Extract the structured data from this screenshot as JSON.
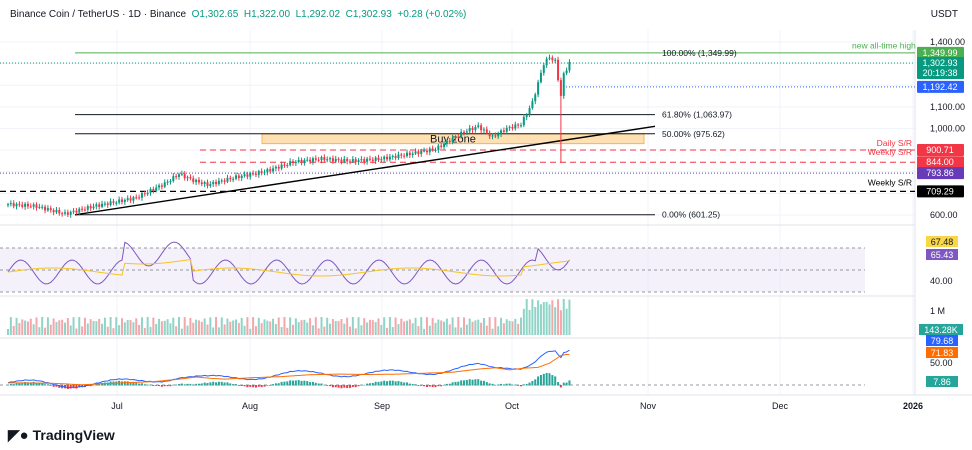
{
  "header": {
    "symbol": "Binance Coin / TetherUS · 1D · Binance",
    "open": "O1,302.65",
    "high": "H1,322.00",
    "low": "L1,292.02",
    "close": "C1,302.93",
    "change": "+0.28 (+0.02%)",
    "currency": "USDT"
  },
  "brand": {
    "name": "TradingView"
  },
  "chart_data": {
    "type": "candlestick",
    "title": "Binance Coin / TetherUS 1D",
    "ylim": [
      560,
      1450
    ],
    "y_ticks": [
      "1,400.00",
      "1,100.00",
      "1,000.00",
      "600.00"
    ],
    "x_ticks": [
      "Jul",
      "Aug",
      "Sep",
      "Oct",
      "Nov",
      "Dec",
      "2026"
    ],
    "close_waypoints_by_day": [
      [
        0,
        650
      ],
      [
        10,
        640
      ],
      [
        20,
        605
      ],
      [
        30,
        640
      ],
      [
        45,
        680
      ],
      [
        55,
        745
      ],
      [
        60,
        790
      ],
      [
        65,
        760
      ],
      [
        70,
        740
      ],
      [
        80,
        775
      ],
      [
        90,
        800
      ],
      [
        100,
        845
      ],
      [
        110,
        860
      ],
      [
        120,
        850
      ],
      [
        130,
        858
      ],
      [
        140,
        880
      ],
      [
        150,
        905
      ],
      [
        160,
        985
      ],
      [
        165,
        1010
      ],
      [
        170,
        960
      ],
      [
        175,
        1000
      ],
      [
        180,
        1020
      ],
      [
        184,
        1120
      ],
      [
        188,
        1300
      ],
      [
        190,
        1330
      ],
      [
        192,
        1310
      ],
      [
        194,
        1150
      ],
      [
        195,
        1250
      ],
      [
        197,
        1302.93
      ]
    ],
    "fib_levels": [
      {
        "label": "100.00% (1,349.99)",
        "value": 1349.99
      },
      {
        "label": "61.80% (1,063.97)",
        "value": 1063.97
      },
      {
        "label": "50.00% (975.62)",
        "value": 975.62
      },
      {
        "label": "0.00% (601.25)",
        "value": 601.25
      }
    ],
    "annotations": {
      "ath": "new all-time high",
      "buy_zone": "Buy zone",
      "daily_sr": "Daily S/R",
      "weekly_sr": "Weekly S/R",
      "weekly_sr2": "Weekly S/R"
    },
    "price_labels": [
      {
        "text": "1,349.99",
        "value": 1349.99,
        "color": "#4caf50"
      },
      {
        "text": "1,302.93",
        "value": 1302.93,
        "color": "#089981",
        "sub": "20:19:38"
      },
      {
        "text": "1,192.42",
        "value": 1192.42,
        "color": "#2962ff"
      },
      {
        "text": "900.71",
        "value": 900.71,
        "color": "#f23645"
      },
      {
        "text": "844.00",
        "value": 844.0,
        "color": "#f23645"
      },
      {
        "text": "793.86",
        "value": 793.86,
        "color": "#673ab7"
      },
      {
        "text": "709.29",
        "value": 709.29,
        "color": "#000000"
      }
    ],
    "buy_zone_range": [
      930,
      975
    ],
    "rsi": {
      "value": "65.43",
      "ma": "67.48",
      "tick": "40.00"
    },
    "volume": {
      "value": "143.28K",
      "tick": "1 M"
    },
    "macd": {
      "macd": "79.68",
      "signal": "71.83",
      "hist": "7.86",
      "tick": "50.00"
    }
  }
}
